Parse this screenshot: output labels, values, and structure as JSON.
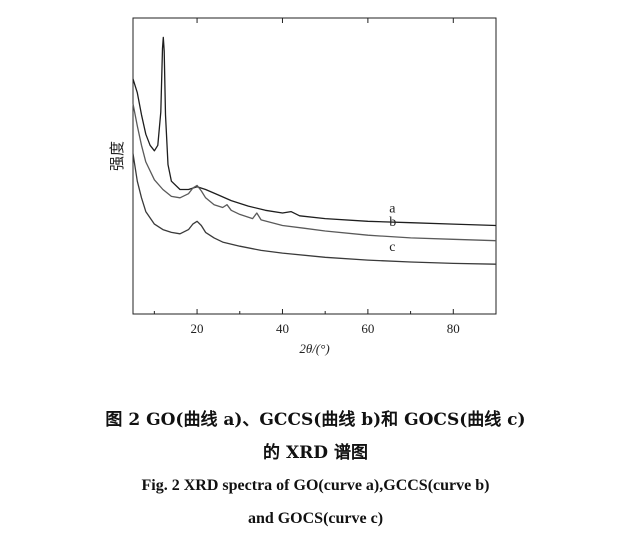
{
  "chart_data": {
    "type": "line",
    "ylabel": "强度",
    "xlabel": "2θ/(°)",
    "xlim": [
      5,
      90
    ],
    "xticks": [
      20,
      40,
      60,
      80
    ],
    "y_ticks_shown": false,
    "grid": false,
    "series": [
      {
        "name": "a",
        "color": "#1e1e1e",
        "points": [
          [
            5,
            8.5
          ],
          [
            6,
            8.0
          ],
          [
            7,
            7.2
          ],
          [
            8,
            6.5
          ],
          [
            9,
            6.1
          ],
          [
            10,
            5.9
          ],
          [
            10.8,
            6.1
          ],
          [
            11.5,
            7.3
          ],
          [
            11.9,
            9.6
          ],
          [
            12.1,
            10.0
          ],
          [
            12.3,
            9.5
          ],
          [
            12.6,
            7.2
          ],
          [
            13.2,
            5.4
          ],
          [
            14,
            4.8
          ],
          [
            16,
            4.5
          ],
          [
            18,
            4.5
          ],
          [
            20,
            4.6
          ],
          [
            22,
            4.5
          ],
          [
            25,
            4.3
          ],
          [
            28,
            4.1
          ],
          [
            32,
            3.9
          ],
          [
            36,
            3.75
          ],
          [
            40,
            3.65
          ],
          [
            42,
            3.7
          ],
          [
            44,
            3.55
          ],
          [
            50,
            3.45
          ],
          [
            60,
            3.35
          ],
          [
            70,
            3.3
          ],
          [
            80,
            3.25
          ],
          [
            90,
            3.2
          ]
        ]
      },
      {
        "name": "b",
        "color": "#5a5a5a",
        "points": [
          [
            5,
            7.6
          ],
          [
            6,
            6.8
          ],
          [
            7,
            6.1
          ],
          [
            8,
            5.5
          ],
          [
            10,
            4.85
          ],
          [
            12,
            4.5
          ],
          [
            14,
            4.25
          ],
          [
            16,
            4.2
          ],
          [
            18,
            4.35
          ],
          [
            19,
            4.55
          ],
          [
            20,
            4.65
          ],
          [
            21,
            4.45
          ],
          [
            22,
            4.2
          ],
          [
            24,
            3.95
          ],
          [
            26,
            3.85
          ],
          [
            27,
            3.95
          ],
          [
            28,
            3.75
          ],
          [
            30,
            3.6
          ],
          [
            33,
            3.45
          ],
          [
            34,
            3.65
          ],
          [
            35,
            3.4
          ],
          [
            40,
            3.2
          ],
          [
            45,
            3.1
          ],
          [
            50,
            3.0
          ],
          [
            60,
            2.85
          ],
          [
            70,
            2.75
          ],
          [
            80,
            2.7
          ],
          [
            90,
            2.65
          ]
        ]
      },
      {
        "name": "c",
        "color": "#3a3a3a",
        "points": [
          [
            5,
            5.8
          ],
          [
            6,
            4.8
          ],
          [
            7,
            4.2
          ],
          [
            8,
            3.7
          ],
          [
            10,
            3.25
          ],
          [
            12,
            3.05
          ],
          [
            14,
            2.95
          ],
          [
            16,
            2.9
          ],
          [
            18,
            3.05
          ],
          [
            19,
            3.25
          ],
          [
            20,
            3.35
          ],
          [
            21,
            3.2
          ],
          [
            22,
            2.95
          ],
          [
            24,
            2.75
          ],
          [
            26,
            2.6
          ],
          [
            30,
            2.45
          ],
          [
            35,
            2.3
          ],
          [
            40,
            2.2
          ],
          [
            50,
            2.05
          ],
          [
            60,
            1.95
          ],
          [
            70,
            1.88
          ],
          [
            80,
            1.83
          ],
          [
            90,
            1.8
          ]
        ]
      }
    ],
    "annotations": [
      "a",
      "b",
      "c"
    ]
  },
  "caption": {
    "zh_line1": "图 2    GO(曲线 a)、GCCS(曲线 b)和 GOCS(曲线 c)",
    "zh_line2": "的 XRD 谱图",
    "en_line1": "Fig. 2    XRD spectra of GO(curve a),GCCS(curve b)",
    "en_line2": "and GOCS(curve c)"
  }
}
